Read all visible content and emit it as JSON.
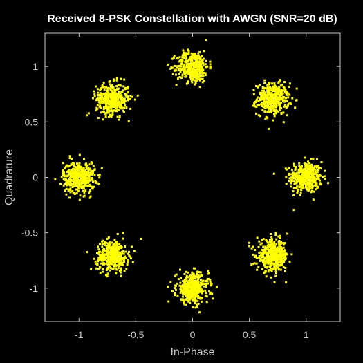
{
  "chart_data": {
    "type": "scatter",
    "title": "Received 8-PSK Constellation with AWGN (SNR=20 dB)",
    "xlabel": "In-Phase",
    "ylabel": "Quadrature",
    "xlim": [
      -1.3,
      1.3
    ],
    "ylim": [
      -1.3,
      1.3
    ],
    "xticks": [
      -1,
      -0.5,
      0,
      0.5,
      1
    ],
    "yticks": [
      -1,
      -0.5,
      0,
      0.5,
      1
    ],
    "xtick_labels": [
      "-1",
      "-0.5",
      "0",
      "0.5",
      "1"
    ],
    "ytick_labels": [
      "-1",
      "-0.5",
      "0",
      "0.5",
      "1"
    ],
    "grid": false,
    "background_color": "#000000",
    "axes_color": "#c8c8c8",
    "series": [
      {
        "marker": "square",
        "color": "#ffff00",
        "noise_std": 0.07,
        "points_per_cluster": 400,
        "cluster_centers": [
          {
            "x": 1,
            "y": 0
          },
          {
            "x": 0.707,
            "y": 0.707
          },
          {
            "x": 0,
            "y": 1
          },
          {
            "x": -0.707,
            "y": 0.707
          },
          {
            "x": -1,
            "y": 0
          },
          {
            "x": -0.707,
            "y": -0.707
          },
          {
            "x": 0,
            "y": -1
          },
          {
            "x": 0.707,
            "y": -0.707
          }
        ]
      }
    ]
  }
}
